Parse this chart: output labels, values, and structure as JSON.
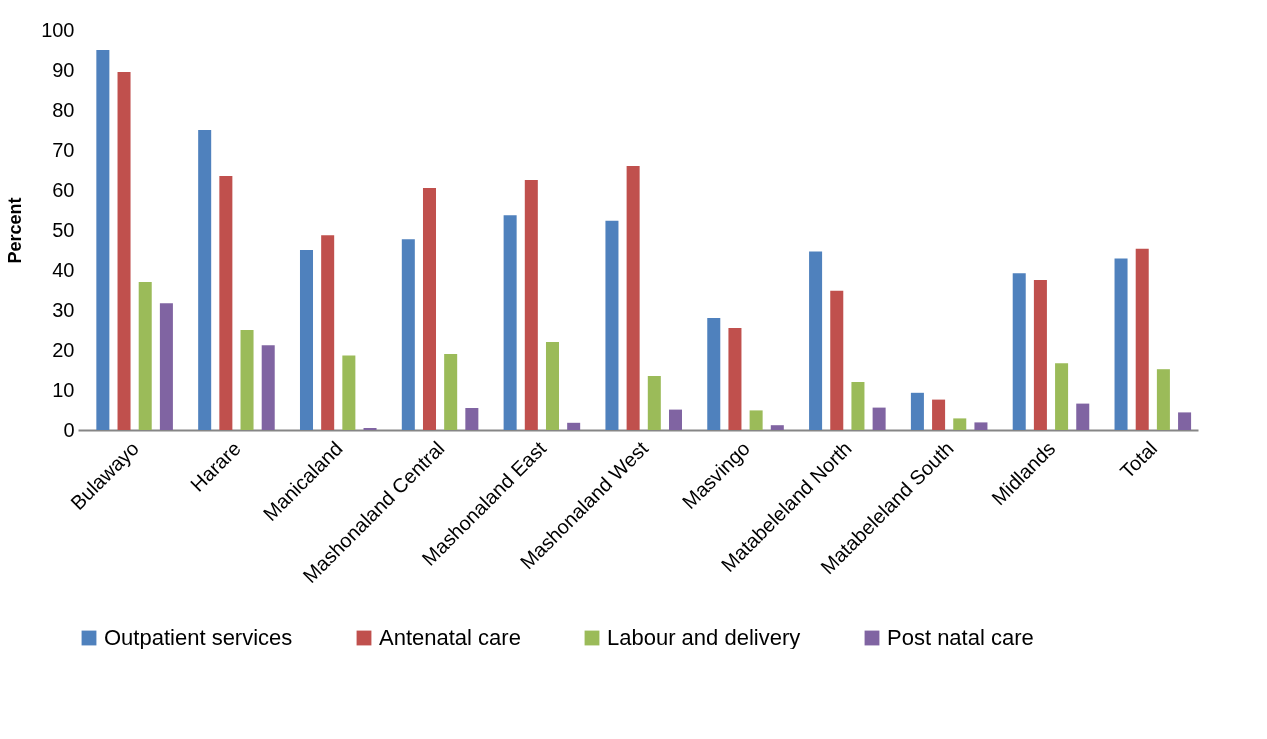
{
  "chart_data": {
    "type": "bar",
    "ylabel": "Percent",
    "categories": [
      "Bulawayo",
      "Harare",
      "Manicaland",
      "Mashonaland Central",
      "Mashonaland East",
      "Mashonaland West",
      "Masvingo",
      "Matabeleland North",
      "Matabeleland South",
      "Midlands",
      "Total"
    ],
    "series": [
      {
        "name": "Outpatient services",
        "color": "#4f81bd",
        "values": [
          95,
          75,
          45,
          47.7,
          53.7,
          52.3,
          28,
          44.6,
          9.3,
          39.2,
          42.9
        ]
      },
      {
        "name": "Antenatal care",
        "color": "#c0504d",
        "values": [
          89.5,
          63.5,
          48.7,
          60.5,
          62.5,
          66,
          25.5,
          34.8,
          7.6,
          37.5,
          45.3
        ]
      },
      {
        "name": "Labour and delivery",
        "color": "#9bbb59",
        "values": [
          37,
          25,
          18.6,
          19,
          22,
          13.5,
          4.9,
          12,
          2.9,
          16.7,
          15.2
        ]
      },
      {
        "name": "Post natal care",
        "color": "#8064a2",
        "values": [
          31.7,
          21.2,
          0.5,
          5.5,
          1.8,
          5.1,
          1.2,
          5.6,
          1.9,
          6.6,
          4.4
        ]
      }
    ],
    "ylim": [
      0,
      100
    ],
    "yticks": [
      0,
      10,
      20,
      30,
      40,
      50,
      60,
      70,
      80,
      90,
      100
    ],
    "grid": false,
    "legend": "bottom"
  }
}
